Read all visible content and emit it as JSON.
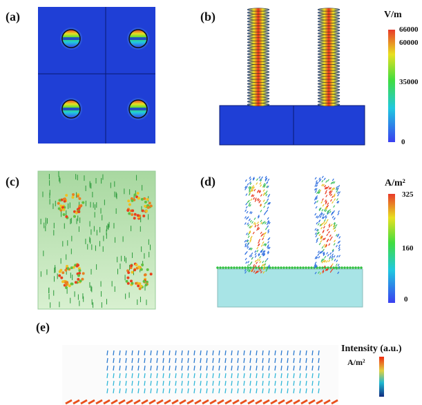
{
  "panels": {
    "a": {
      "label": "(a)"
    },
    "b": {
      "label": "(b)",
      "colorbar": {
        "unit": "V/m",
        "ticks": [
          "66000",
          "60000",
          "35000",
          "0"
        ]
      }
    },
    "c": {
      "label": "(c)"
    },
    "d": {
      "label": "(d)",
      "colorbar": {
        "unit": "A/m²",
        "ticks": [
          "325",
          "160",
          "0"
        ]
      }
    },
    "e": {
      "label": "(e)",
      "colorbar": {
        "title": "Intensity (a.u.)",
        "unit": "A/m²"
      }
    }
  },
  "colors": {
    "field_blue": "#1f3fd6",
    "hot": "#e8401c",
    "base_cyan": "#a8e4e6"
  }
}
